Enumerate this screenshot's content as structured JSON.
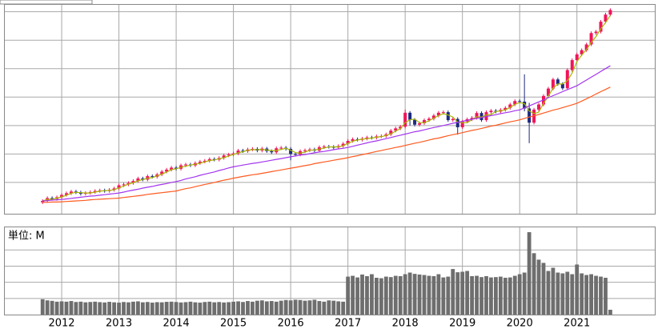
{
  "chart_data": [
    {
      "type": "candlestick",
      "open": [
        3.0,
        3.5,
        4.5,
        4.2,
        4.8,
        5.6,
        6.2,
        6.8,
        6.5,
        6.0,
        6.3,
        6.6,
        7.0,
        7.2,
        7.0,
        7.4,
        7.9,
        9.0,
        9.3,
        9.8,
        10.5,
        11.4,
        11.0,
        12.2,
        12.0,
        12.8,
        13.8,
        14.5,
        15.2,
        14.8,
        16.0,
        16.3,
        16.0,
        16.8,
        17.3,
        17.6,
        18.2,
        18.0,
        18.6,
        19.5,
        19.8,
        20.2,
        21.2,
        21.0,
        21.6,
        21.8,
        21.2,
        21.9,
        21.0,
        20.6,
        22.0,
        22.2,
        21.8,
        20.0,
        19.8,
        21.0,
        21.3,
        21.6,
        21.2,
        22.4,
        22.6,
        22.5,
        22.3,
        22.8,
        23.6,
        24.6,
        25.2,
        25.0,
        25.4,
        25.8,
        25.7,
        26.2,
        26.3,
        26.9,
        28.2,
        29.0,
        29.6,
        34.5,
        32.0,
        30.3,
        30.8,
        31.9,
        32.4,
        33.5,
        34.5,
        34.7,
        31.9,
        32.3,
        29.4,
        31.4,
        32.2,
        32.7,
        34.4,
        31.9,
        34.7,
        35.2,
        34.9,
        35.5,
        36.2,
        37.4,
        38.6,
        38.4,
        36.0,
        31.0,
        35.6,
        37.4,
        40.4,
        43.0,
        46.2,
        44.6,
        43.1,
        49.5,
        53.0,
        55.0,
        56.5,
        58.5,
        62.5,
        63.0,
        66.5,
        69.0
      ],
      "high": [
        4.1,
        5.1,
        5.1,
        5.4,
        6.2,
        6.8,
        7.4,
        7.4,
        7.1,
        6.9,
        7.2,
        7.6,
        7.8,
        7.8,
        8.0,
        8.5,
        9.6,
        9.9,
        10.4,
        11.1,
        12.0,
        12.0,
        12.8,
        12.8,
        13.4,
        14.4,
        15.1,
        15.8,
        15.8,
        16.6,
        16.9,
        16.9,
        17.4,
        17.9,
        18.2,
        18.8,
        18.8,
        19.2,
        20.1,
        20.4,
        20.8,
        21.8,
        21.8,
        22.2,
        22.4,
        22.4,
        22.5,
        22.5,
        21.6,
        22.6,
        22.8,
        22.8,
        22.4,
        20.6,
        21.6,
        21.9,
        22.2,
        22.2,
        23.0,
        23.2,
        23.2,
        23.1,
        23.4,
        24.2,
        25.2,
        25.8,
        25.8,
        26.0,
        26.4,
        26.4,
        26.8,
        26.9,
        27.5,
        28.8,
        29.6,
        30.2,
        35.6,
        35.1,
        32.6,
        31.4,
        32.5,
        33.0,
        34.1,
        35.1,
        35.3,
        35.3,
        32.9,
        32.9,
        32.0,
        32.8,
        33.3,
        35.0,
        35.0,
        35.3,
        35.8,
        35.8,
        36.1,
        36.8,
        38.0,
        39.2,
        39.2,
        48.0,
        38.0,
        36.2,
        38.0,
        41.0,
        43.6,
        46.8,
        46.8,
        45.2,
        50.1,
        53.6,
        55.6,
        57.1,
        59.1,
        63.1,
        63.6,
        67.1,
        69.6,
        71.2
      ],
      "low": [
        2.4,
        2.9,
        3.6,
        3.6,
        4.2,
        5.0,
        5.6,
        5.9,
        5.4,
        5.4,
        5.7,
        6.0,
        6.4,
        6.4,
        6.4,
        6.8,
        7.3,
        8.4,
        8.7,
        9.2,
        9.9,
        10.4,
        10.4,
        11.4,
        11.4,
        12.2,
        13.2,
        13.9,
        14.2,
        14.2,
        15.4,
        15.4,
        15.4,
        16.2,
        16.7,
        17.0,
        17.4,
        17.4,
        18.0,
        18.9,
        19.2,
        19.6,
        20.4,
        20.4,
        21.0,
        20.6,
        20.6,
        20.4,
        20.0,
        20.0,
        21.4,
        21.2,
        17.8,
        19.2,
        19.2,
        20.4,
        20.7,
        20.6,
        20.6,
        21.8,
        21.9,
        21.7,
        21.7,
        22.2,
        23.0,
        24.0,
        24.4,
        24.4,
        24.8,
        25.1,
        25.1,
        25.6,
        25.7,
        26.3,
        27.6,
        28.4,
        29.0,
        30.0,
        29.7,
        29.7,
        30.2,
        31.3,
        31.8,
        32.9,
        33.9,
        31.3,
        31.3,
        26.8,
        28.8,
        30.8,
        31.6,
        32.1,
        31.3,
        31.3,
        34.1,
        34.3,
        34.3,
        34.9,
        35.6,
        36.8,
        37.8,
        35.0,
        23.8,
        30.4,
        35.0,
        36.8,
        39.8,
        42.4,
        44.0,
        42.5,
        42.5,
        48.9,
        52.4,
        54.4,
        55.9,
        57.9,
        61.9,
        62.4,
        65.9,
        68.4
      ],
      "close": [
        3.5,
        4.5,
        4.2,
        4.8,
        5.6,
        6.2,
        6.8,
        6.5,
        6.0,
        6.3,
        6.6,
        7.0,
        7.2,
        7.0,
        7.4,
        7.9,
        9.0,
        9.3,
        9.8,
        10.5,
        11.4,
        11.0,
        12.2,
        12.0,
        12.8,
        13.8,
        14.5,
        15.2,
        14.8,
        16.0,
        16.3,
        16.0,
        16.8,
        17.3,
        17.6,
        18.2,
        18.0,
        18.6,
        19.5,
        19.8,
        20.2,
        21.2,
        21.0,
        21.6,
        21.8,
        21.2,
        21.9,
        21.0,
        20.6,
        22.0,
        22.2,
        21.8,
        20.0,
        19.8,
        21.0,
        21.3,
        21.6,
        21.2,
        22.4,
        22.6,
        22.5,
        22.3,
        22.8,
        23.6,
        24.6,
        25.2,
        25.0,
        25.4,
        25.8,
        25.7,
        26.2,
        26.3,
        26.9,
        28.2,
        29.0,
        29.6,
        34.5,
        32.0,
        30.3,
        30.8,
        31.9,
        32.4,
        33.5,
        34.5,
        34.7,
        31.9,
        32.3,
        29.4,
        31.4,
        32.2,
        32.7,
        34.4,
        31.9,
        34.7,
        35.2,
        34.9,
        35.5,
        36.2,
        37.4,
        38.6,
        38.4,
        36.0,
        31.0,
        35.6,
        37.4,
        40.4,
        43.0,
        46.2,
        44.6,
        43.1,
        49.5,
        53.0,
        55.0,
        56.5,
        58.5,
        62.5,
        63.0,
        66.5,
        69.0,
        70.6
      ],
      "up_color": "#f0145a",
      "down_color": "#1c2a80",
      "series": [
        {
          "color": "#a6b800",
          "values": [
            3.5,
            4.0,
            4.1,
            4.5,
            4.9,
            5.5,
            6.2,
            6.5,
            6.4,
            6.3,
            6.3,
            6.6,
            6.9,
            7.1,
            7.2,
            7.4,
            8.1,
            8.7,
            9.4,
            9.9,
            10.6,
            11.0,
            11.5,
            11.7,
            12.3,
            12.9,
            13.7,
            14.5,
            14.8,
            15.3,
            15.7,
            16.1,
            16.4,
            16.7,
            17.2,
            17.7,
            17.9,
            18.3,
            18.7,
            19.3,
            19.8,
            20.4,
            20.8,
            21.3,
            21.5,
            21.5,
            21.6,
            21.4,
            21.2,
            21.2,
            21.6,
            22.0,
            21.3,
            20.5,
            20.3,
            20.7,
            21.3,
            21.4,
            21.7,
            22.1,
            22.5,
            22.5,
            22.5,
            22.9,
            23.7,
            24.5,
            24.9,
            25.2,
            25.4,
            25.6,
            25.9,
            26.1,
            26.5,
            27.1,
            28.0,
            28.9,
            31.0,
            32.0,
            32.3,
            31.0,
            31.0,
            31.7,
            32.6,
            33.5,
            34.2,
            33.7,
            33.0,
            31.2,
            31.0,
            31.0,
            32.1,
            33.1,
            33.0,
            33.7,
            33.9,
            34.9,
            35.2,
            35.5,
            36.4,
            37.4,
            38.1,
            37.7,
            35.1,
            34.2,
            34.7,
            37.8,
            40.3,
            43.2,
            44.6,
            44.6,
            45.7,
            48.5,
            52.5,
            54.8,
            56.7,
            59.2,
            61.3,
            64.0,
            66.2,
            68.7
          ]
        },
        {
          "color": "#a335ee",
          "values": [
            3.5,
            3.6,
            3.8,
            3.9,
            4.0,
            4.2,
            4.4,
            4.6,
            4.8,
            5.0,
            5.2,
            5.3,
            5.5,
            5.7,
            5.9,
            6.1,
            6.3,
            6.6,
            7.0,
            7.3,
            7.6,
            8.0,
            8.3,
            8.6,
            9.0,
            9.3,
            9.6,
            10.0,
            10.3,
            10.7,
            11.2,
            11.6,
            12.0,
            12.5,
            12.9,
            13.3,
            13.7,
            14.2,
            14.6,
            15.1,
            15.5,
            15.8,
            16.1,
            16.4,
            16.7,
            16.9,
            17.2,
            17.5,
            17.8,
            18.1,
            18.4,
            18.7,
            19.0,
            19.3,
            19.6,
            19.8,
            20.1,
            20.4,
            20.7,
            20.9,
            21.2,
            21.5,
            21.8,
            22.0,
            22.3,
            22.7,
            23.1,
            23.5,
            23.9,
            24.3,
            24.6,
            25.0,
            25.4,
            25.8,
            26.2,
            26.6,
            27.0,
            27.4,
            27.8,
            28.1,
            28.5,
            28.9,
            29.3,
            29.6,
            30.0,
            30.4,
            30.8,
            31.1,
            31.5,
            31.8,
            32.2,
            32.5,
            32.8,
            33.2,
            33.5,
            33.8,
            34.2,
            34.5,
            34.8,
            35.2,
            35.5,
            36.2,
            36.9,
            37.6,
            38.3,
            39.0,
            39.8,
            40.5,
            41.2,
            41.9,
            42.6,
            43.3,
            44.0,
            45.0,
            46.0,
            47.0,
            48.0,
            49.0,
            50.0,
            51.0
          ]
        },
        {
          "color": "#ff5a1f",
          "values": [
            3.0,
            3.0,
            3.1,
            3.1,
            3.2,
            3.3,
            3.4,
            3.5,
            3.6,
            3.7,
            3.9,
            4.0,
            4.1,
            4.2,
            4.3,
            4.4,
            4.5,
            4.7,
            4.9,
            5.1,
            5.3,
            5.5,
            5.8,
            6.0,
            6.2,
            6.4,
            6.6,
            6.8,
            7.0,
            7.4,
            7.8,
            8.1,
            8.5,
            8.9,
            9.3,
            9.6,
            10.0,
            10.4,
            10.8,
            11.1,
            11.5,
            11.8,
            12.1,
            12.4,
            12.7,
            12.9,
            13.2,
            13.5,
            13.8,
            14.1,
            14.4,
            14.7,
            15.0,
            15.3,
            15.6,
            15.9,
            16.2,
            16.6,
            16.9,
            17.2,
            17.5,
            17.8,
            18.1,
            18.4,
            18.7,
            19.1,
            19.4,
            19.8,
            20.1,
            20.5,
            20.9,
            21.2,
            21.6,
            21.9,
            22.3,
            22.6,
            23.0,
            23.4,
            23.8,
            24.1,
            24.5,
            24.9,
            25.3,
            25.6,
            26.0,
            26.4,
            26.8,
            27.1,
            27.5,
            27.9,
            28.3,
            28.6,
            29.0,
            29.4,
            29.8,
            30.1,
            30.5,
            30.9,
            31.3,
            31.6,
            32.0,
            32.5,
            33.0,
            33.4,
            33.9,
            34.4,
            34.9,
            35.4,
            35.8,
            36.3,
            36.8,
            37.3,
            37.8,
            38.6,
            39.4,
            40.2,
            41.1,
            41.9,
            42.7,
            43.5
          ]
        }
      ],
      "ylim": [
        -1,
        73
      ],
      "yticks": [
        10,
        20,
        30,
        40,
        50,
        60,
        70
      ],
      "grid": true
    },
    {
      "type": "bar",
      "unit_label": "単位: M",
      "categories": [
        null,
        null,
        null,
        null,
        "2012",
        null,
        null,
        null,
        null,
        null,
        null,
        null,
        null,
        null,
        null,
        null,
        "2013",
        null,
        null,
        null,
        null,
        null,
        null,
        null,
        null,
        null,
        null,
        null,
        "2014",
        null,
        null,
        null,
        null,
        null,
        null,
        null,
        null,
        null,
        null,
        null,
        "2015",
        null,
        null,
        null,
        null,
        null,
        null,
        null,
        null,
        null,
        null,
        null,
        "2016",
        null,
        null,
        null,
        null,
        null,
        null,
        null,
        null,
        null,
        null,
        null,
        "2017",
        null,
        null,
        null,
        null,
        null,
        null,
        null,
        null,
        null,
        null,
        null,
        "2018",
        null,
        null,
        null,
        null,
        null,
        null,
        null,
        null,
        null,
        null,
        null,
        "2019",
        null,
        null,
        null,
        null,
        null,
        null,
        null,
        null,
        null,
        null,
        null,
        "2020",
        null,
        null,
        null,
        null,
        null,
        null,
        null,
        null,
        null,
        null,
        null,
        "2021",
        null,
        null,
        null,
        null,
        null,
        null,
        null
      ],
      "values": [
        95,
        88,
        85,
        80,
        82,
        80,
        84,
        78,
        80,
        76,
        78,
        80,
        77,
        75,
        79,
        76,
        74,
        78,
        76,
        80,
        82,
        76,
        78,
        74,
        77,
        76,
        79,
        80,
        78,
        75,
        77,
        80,
        76,
        74,
        78,
        80,
        76,
        78,
        75,
        77,
        80,
        82,
        78,
        84,
        80,
        86,
        88,
        82,
        84,
        80,
        86,
        90,
        88,
        92,
        90,
        86,
        88,
        92,
        84,
        80,
        88,
        86,
        82,
        80,
        235,
        240,
        230,
        248,
        238,
        250,
        228,
        225,
        235,
        232,
        240,
        238,
        250,
        260,
        252,
        248,
        245,
        240,
        238,
        250,
        230,
        235,
        282,
        262,
        265,
        270,
        238,
        240,
        232,
        238,
        230,
        232,
        235,
        228,
        230,
        240,
        250,
        260,
        510,
        380,
        340,
        320,
        270,
        290,
        260,
        255,
        265,
        250,
        310,
        255,
        245,
        250,
        240,
        235,
        228,
        30
      ],
      "color": "#6e6e6e",
      "ylim": [
        0,
        540
      ],
      "yticks": [
        100,
        200,
        300,
        400
      ],
      "grid": true
    }
  ]
}
